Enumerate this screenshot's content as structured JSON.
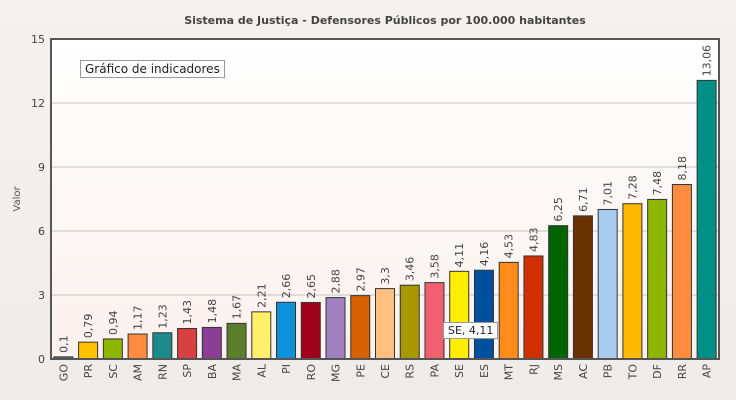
{
  "chart_data": {
    "type": "bar",
    "title": "Sistema de Justiça - Defensores Públicos por 100.000 habitantes",
    "xlabel": "",
    "ylabel": "Valor",
    "ylim": [
      0,
      15
    ],
    "yticks": [
      "0",
      "3",
      "6",
      "9",
      "12",
      "15"
    ],
    "grid": true,
    "categories": [
      "GO",
      "PR",
      "SC",
      "AM",
      "RN",
      "SP",
      "BA",
      "MA",
      "AL",
      "PI",
      "RO",
      "MG",
      "PE",
      "CE",
      "RS",
      "PA",
      "SE",
      "ES",
      "MT",
      "RJ",
      "MS",
      "AC",
      "PB",
      "TO",
      "DF",
      "RR",
      "AP"
    ],
    "values": [
      0.1,
      0.79,
      0.94,
      1.17,
      1.23,
      1.43,
      1.48,
      1.67,
      2.21,
      2.66,
      2.65,
      2.88,
      2.97,
      3.3,
      3.46,
      3.58,
      4.11,
      4.16,
      4.53,
      4.83,
      6.25,
      6.71,
      7.01,
      7.28,
      7.48,
      8.18,
      13.06
    ],
    "labels": [
      "0,1",
      "0,79",
      "0,94",
      "1,17",
      "1,23",
      "1,43",
      "1,48",
      "1,67",
      "2,21",
      "2,66",
      "2,65",
      "2,88",
      "2,97",
      "3,3",
      "3,46",
      "3,58",
      "4,11",
      "4,16",
      "4,53",
      "4,83",
      "6,25",
      "6,71",
      "7,01",
      "7,28",
      "7,48",
      "8,18",
      "13,06"
    ],
    "colors": [
      "#666666",
      "#ffc000",
      "#8db600",
      "#ff8c40",
      "#1a8a8a",
      "#d94040",
      "#8a3f95",
      "#5a7f2a",
      "#fff06a",
      "#1090d8",
      "#a0001a",
      "#a080c0",
      "#d86000",
      "#ffc080",
      "#a89800",
      "#f06070",
      "#ffee00",
      "#0050a0",
      "#ff8c1a",
      "#d03000",
      "#006400",
      "#6b3000",
      "#a8ccf0",
      "#ffb800",
      "#8db600",
      "#ff8c40",
      "#009088"
    ]
  },
  "tooltips": {
    "title": "Gráfico de indicadores",
    "point": "SE, 4,11"
  }
}
